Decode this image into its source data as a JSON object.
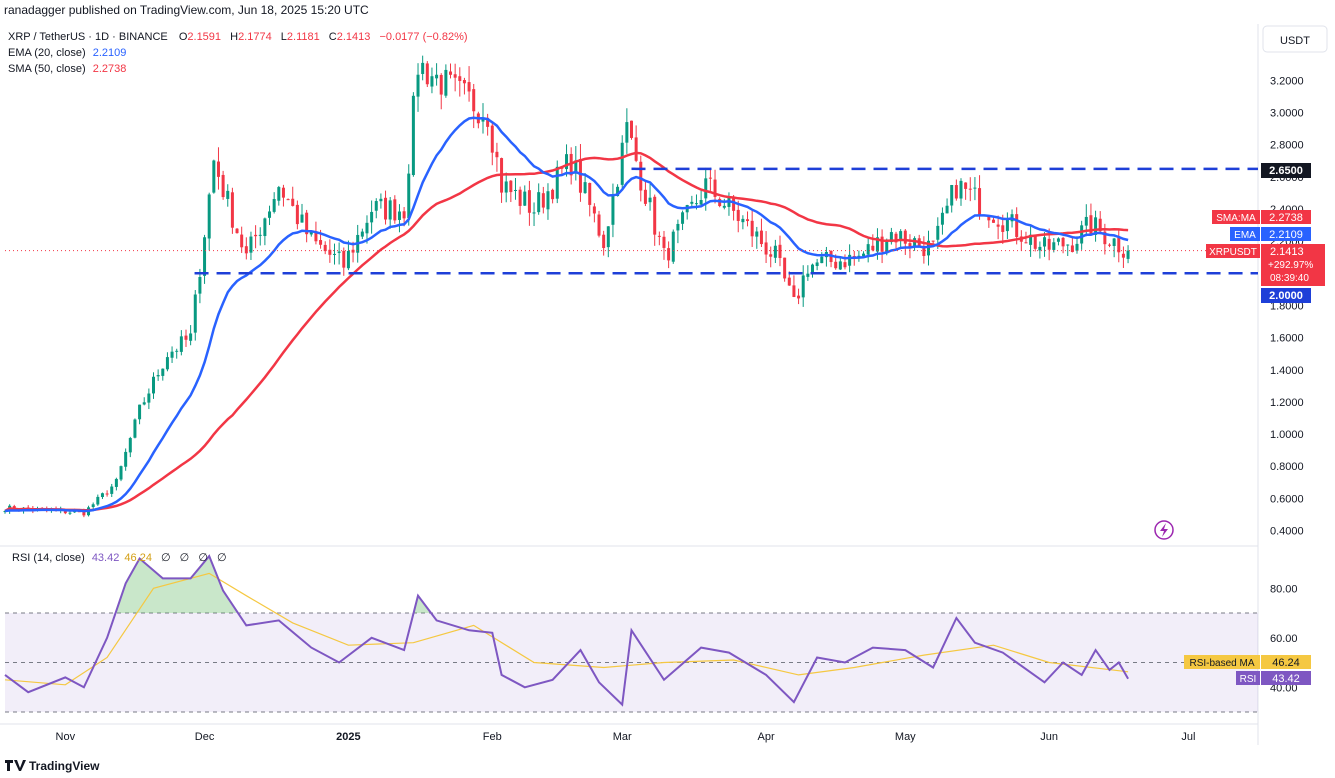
{
  "header": {
    "published": "ranadagger published on TradingView.com, Jun 18, 2025 15:20 UTC"
  },
  "legend": {
    "symbol": "XRP / TetherUS · 1D · BINANCE",
    "o_label": "O",
    "o_value": "2.1591",
    "h_label": "H",
    "h_value": "2.1774",
    "l_label": "L",
    "l_value": "2.1181",
    "c_label": "C",
    "c_value": "2.1413",
    "change": "−0.0177 (−0.82%)",
    "ema_label": "EMA (20, close)",
    "ema_value": "2.2109",
    "sma_label": "SMA (50, close)",
    "sma_value": "2.2738"
  },
  "price_axis": {
    "currency": "USDT",
    "ticks": [
      "3.2000",
      "3.0000",
      "2.8000",
      "2.6000",
      "2.4000",
      "2.2000",
      "2.0000",
      "1.8000",
      "1.6000",
      "1.4000",
      "1.2000",
      "1.0000",
      "0.8000",
      "0.6000",
      "0.4000"
    ]
  },
  "price_labels": {
    "resistance": "2.6500",
    "support": "2.0000",
    "sma_tag": "SMA:MA",
    "sma_value": "2.2738",
    "ema_tag": "EMA",
    "ema_value": "2.2109",
    "symbol_tag": "XRPUSDT",
    "last_price": "2.1413",
    "pct_change": "+292.97%",
    "countdown": "08:39:40"
  },
  "rsi_panel": {
    "title": "RSI (14, close)",
    "rsi_value": "43.42",
    "ma_value": "46.24",
    "extras": [
      "∅",
      "∅",
      "∅",
      "∅"
    ],
    "ticks": [
      "80.00",
      "60.00",
      "40.00"
    ],
    "ma_tag": "RSI-based MA",
    "ma_tag_value": "46.24",
    "rsi_tag": "RSI",
    "rsi_tag_value": "43.42"
  },
  "time_axis": {
    "labels": [
      "Nov",
      "Dec",
      "2025",
      "Feb",
      "Mar",
      "Apr",
      "May",
      "Jun",
      "Jul"
    ]
  },
  "footer": {
    "brand": "TradingView"
  },
  "colors": {
    "up": "#089981",
    "down": "#f23645",
    "ema": "#2962ff",
    "sma": "#f23645",
    "rsi": "#7e57c2",
    "rsi_ma": "#f5c842",
    "level": "#1e3fd8"
  },
  "chart_data": [
    {
      "type": "candlestick",
      "title": "XRP / TetherUS · 1D · BINANCE",
      "ylabel": "USDT",
      "ylim": [
        0.35,
        3.45
      ],
      "x_range": [
        "2024-10-19",
        "2025-06-18"
      ],
      "horizontal_levels": [
        2.65,
        2.0
      ],
      "anchors": [
        {
          "date": "2024-10-19",
          "close": 0.54
        },
        {
          "date": "2024-11-05",
          "close": 0.51
        },
        {
          "date": "2024-11-12",
          "close": 0.7
        },
        {
          "date": "2024-11-17",
          "close": 1.15
        },
        {
          "date": "2024-11-23",
          "close": 1.5
        },
        {
          "date": "2024-11-28",
          "close": 1.6
        },
        {
          "date": "2024-12-03",
          "close": 2.7
        },
        {
          "date": "2024-12-10",
          "close": 2.1
        },
        {
          "date": "2024-12-17",
          "close": 2.55
        },
        {
          "date": "2024-12-24",
          "close": 2.2
        },
        {
          "date": "2024-12-31",
          "close": 2.05
        },
        {
          "date": "2025-01-06",
          "close": 2.4
        },
        {
          "date": "2025-01-13",
          "close": 2.4
        },
        {
          "date": "2025-01-16",
          "close": 3.3
        },
        {
          "date": "2025-01-23",
          "close": 3.15
        },
        {
          "date": "2025-01-31",
          "close": 3.0
        },
        {
          "date": "2025-02-03",
          "close": 2.55
        },
        {
          "date": "2025-02-10",
          "close": 2.4
        },
        {
          "date": "2025-02-18",
          "close": 2.7
        },
        {
          "date": "2025-02-25",
          "close": 2.2
        },
        {
          "date": "2025-03-02",
          "close": 2.9
        },
        {
          "date": "2025-03-10",
          "close": 2.1
        },
        {
          "date": "2025-03-19",
          "close": 2.55
        },
        {
          "date": "2025-03-26",
          "close": 2.35
        },
        {
          "date": "2025-04-03",
          "close": 2.1
        },
        {
          "date": "2025-04-07",
          "close": 1.8
        },
        {
          "date": "2025-04-10",
          "close": 2.05
        },
        {
          "date": "2025-04-21",
          "close": 2.1
        },
        {
          "date": "2025-04-28",
          "close": 2.25
        },
        {
          "date": "2025-05-07",
          "close": 2.15
        },
        {
          "date": "2025-05-12",
          "close": 2.55
        },
        {
          "date": "2025-05-19",
          "close": 2.4
        },
        {
          "date": "2025-05-31",
          "close": 2.15
        },
        {
          "date": "2025-06-06",
          "close": 2.2
        },
        {
          "date": "2025-06-10",
          "close": 2.3
        },
        {
          "date": "2025-06-18",
          "close": 2.1413
        }
      ],
      "series": [
        {
          "name": "EMA (20, close)",
          "last": 2.2109
        },
        {
          "name": "SMA (50, close)",
          "last": 2.2738
        },
        {
          "name": "XRPUSDT",
          "last": 2.1413
        }
      ]
    },
    {
      "type": "line",
      "title": "RSI (14, close)",
      "ylim": [
        30,
        95
      ],
      "bands": [
        70,
        50,
        30
      ],
      "series": [
        {
          "name": "RSI",
          "last": 43.42,
          "points": [
            [
              "2024-10-19",
              45
            ],
            [
              "2024-10-24",
              38
            ],
            [
              "2024-11-01",
              44
            ],
            [
              "2024-11-05",
              40
            ],
            [
              "2024-11-10",
              60
            ],
            [
              "2024-11-14",
              82
            ],
            [
              "2024-11-17",
              92
            ],
            [
              "2024-11-22",
              84
            ],
            [
              "2024-11-28",
              84
            ],
            [
              "2024-12-02",
              93
            ],
            [
              "2024-12-05",
              79
            ],
            [
              "2024-12-10",
              65
            ],
            [
              "2024-12-17",
              67
            ],
            [
              "2024-12-24",
              56
            ],
            [
              "2024-12-30",
              50
            ],
            [
              "2025-01-06",
              60
            ],
            [
              "2025-01-13",
              55
            ],
            [
              "2025-01-16",
              77
            ],
            [
              "2025-01-20",
              67
            ],
            [
              "2025-01-27",
              63
            ],
            [
              "2025-02-01",
              62
            ],
            [
              "2025-02-03",
              45
            ],
            [
              "2025-02-08",
              40
            ],
            [
              "2025-02-14",
              43
            ],
            [
              "2025-02-20",
              55
            ],
            [
              "2025-02-24",
              42
            ],
            [
              "2025-03-01",
              33
            ],
            [
              "2025-03-03",
              63
            ],
            [
              "2025-03-10",
              43
            ],
            [
              "2025-03-18",
              56
            ],
            [
              "2025-03-24",
              54
            ],
            [
              "2025-04-01",
              45
            ],
            [
              "2025-04-07",
              34
            ],
            [
              "2025-04-12",
              52
            ],
            [
              "2025-04-18",
              50
            ],
            [
              "2025-04-24",
              56
            ],
            [
              "2025-05-01",
              55
            ],
            [
              "2025-05-07",
              48
            ],
            [
              "2025-05-12",
              68
            ],
            [
              "2025-05-16",
              58
            ],
            [
              "2025-05-22",
              54
            ],
            [
              "2025-05-31",
              42
            ],
            [
              "2025-06-04",
              50
            ],
            [
              "2025-06-08",
              45
            ],
            [
              "2025-06-11",
              55
            ],
            [
              "2025-06-14",
              47
            ],
            [
              "2025-06-16",
              50
            ],
            [
              "2025-06-18",
              43.42
            ]
          ]
        },
        {
          "name": "RSI-based MA",
          "last": 46.24,
          "points": [
            [
              "2024-10-19",
              43
            ],
            [
              "2024-11-01",
              41
            ],
            [
              "2024-11-10",
              52
            ],
            [
              "2024-11-20",
              80
            ],
            [
              "2024-12-02",
              86
            ],
            [
              "2024-12-10",
              77
            ],
            [
              "2024-12-20",
              66
            ],
            [
              "2025-01-01",
              57
            ],
            [
              "2025-01-15",
              58
            ],
            [
              "2025-01-28",
              65
            ],
            [
              "2025-02-10",
              50
            ],
            [
              "2025-02-25",
              48
            ],
            [
              "2025-03-10",
              50
            ],
            [
              "2025-03-25",
              51
            ],
            [
              "2025-04-08",
              45
            ],
            [
              "2025-04-20",
              48
            ],
            [
              "2025-05-05",
              53
            ],
            [
              "2025-05-20",
              57
            ],
            [
              "2025-06-01",
              50
            ],
            [
              "2025-06-18",
              46.24
            ]
          ]
        }
      ]
    }
  ]
}
